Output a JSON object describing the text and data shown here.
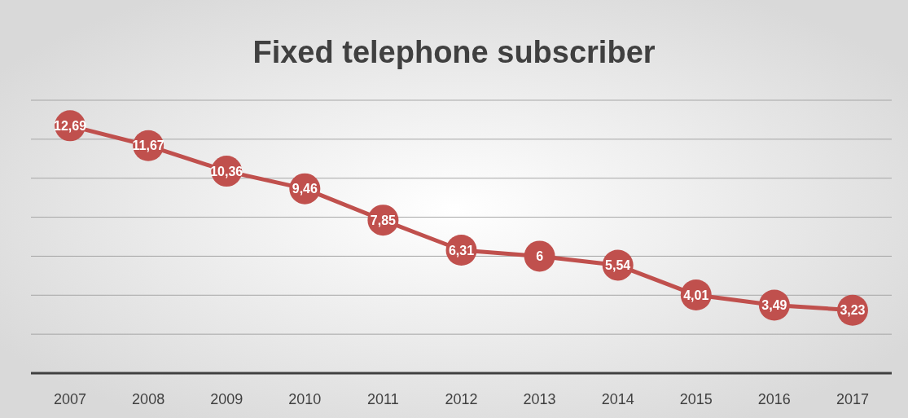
{
  "chart_data": {
    "type": "line",
    "title": "Fixed telephone subscriber",
    "categories": [
      "2007",
      "2008",
      "2009",
      "2010",
      "2011",
      "2012",
      "2013",
      "2014",
      "2015",
      "2016",
      "2017"
    ],
    "series": [
      {
        "color": "#c0504d",
        "values": [
          12.69,
          11.67,
          10.36,
          9.46,
          7.85,
          6.31,
          6,
          5.54,
          4.01,
          3.49,
          3.23
        ],
        "value_labels": [
          "12,69",
          "11,67",
          "10,36",
          "9,46",
          "7,85",
          "6,31",
          "6",
          "5,54",
          "4,01",
          "3,49",
          "3,23"
        ]
      }
    ],
    "ylim": [
      0,
      14
    ],
    "yticks": [
      {
        "value": 0,
        "label": null
      },
      {
        "value": 2,
        "label": null
      },
      {
        "value": 4,
        "label": null
      },
      {
        "value": 6,
        "label": null
      },
      {
        "value": 8,
        "label": null
      },
      {
        "value": 10,
        "label": null
      },
      {
        "value": 12,
        "label": null
      },
      {
        "value": 14,
        "label": null
      }
    ],
    "tick_labels": "x",
    "grid": "y",
    "marker": "circle",
    "line_style": "solid"
  }
}
